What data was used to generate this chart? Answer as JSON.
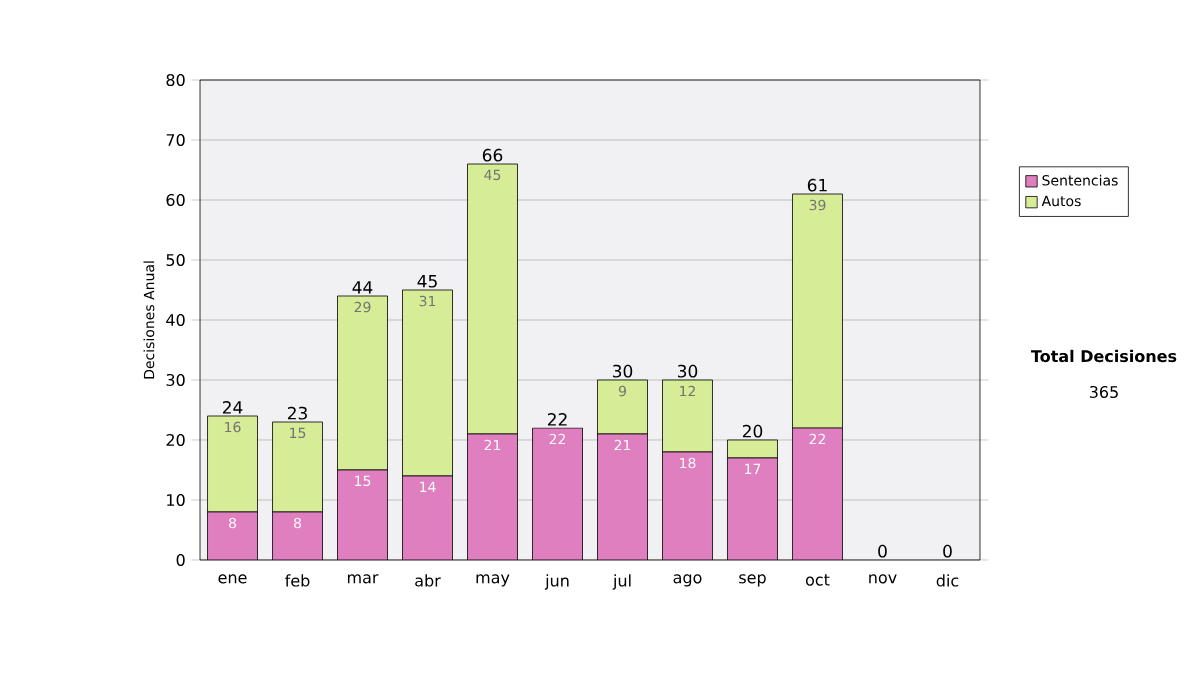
{
  "chart_data": {
    "type": "bar",
    "stacked": true,
    "ylabel": "Decisiones Anual",
    "categories": [
      "ene",
      "feb",
      "mar",
      "abr",
      "may",
      "jun",
      "jul",
      "ago",
      "sep",
      "oct",
      "nov",
      "dic"
    ],
    "series": [
      {
        "name": "Sentencias",
        "color": "#e07fc0",
        "values": [
          8,
          8,
          15,
          14,
          21,
          22,
          21,
          18,
          17,
          22,
          0,
          0
        ],
        "value_labels": [
          "8",
          "8",
          "15",
          "14",
          "21",
          "22",
          "21",
          "18",
          "17",
          "22",
          null,
          null
        ]
      },
      {
        "name": "Autos",
        "color": "#d6ec96",
        "values": [
          16,
          15,
          29,
          31,
          45,
          0,
          9,
          12,
          3,
          39,
          0,
          0
        ],
        "value_labels": [
          "16",
          "15",
          "29",
          "31",
          "45",
          null,
          "9",
          "12",
          null,
          "39",
          null,
          null
        ]
      }
    ],
    "totals": [
      "24",
      "23",
      "44",
      "45",
      "66",
      "22",
      "30",
      "30",
      "20",
      "61",
      "0",
      "0"
    ],
    "ylim": [
      0,
      80
    ],
    "yticks": [
      0,
      10,
      20,
      30,
      40,
      50,
      60,
      70,
      80
    ],
    "grid": "y",
    "legend": "right",
    "annotations": [
      "**Total Decisiones**",
      "365"
    ]
  }
}
